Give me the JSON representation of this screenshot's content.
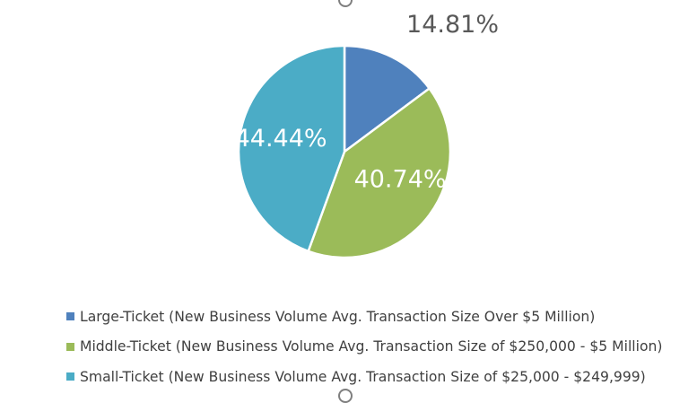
{
  "colors": {
    "large": "#4f81bd",
    "middle": "#9bbb59",
    "small": "#4bacc6",
    "outside_label": "#595959",
    "inside_label": "#ffffff",
    "legend_text": "#404040"
  },
  "chart_data": {
    "type": "pie",
    "title": "",
    "start_angle_deg": 0,
    "direction": "clockwise",
    "legend_position": "bottom",
    "slices": [
      {
        "name": "Large-Ticket (New Business Volume Avg. Transaction Size Over $5 Million)",
        "value": 14.81,
        "label": "14.81%",
        "color_key": "large",
        "label_placement": "outside"
      },
      {
        "name": "Middle-Ticket (New Business Volume Avg. Transaction Size of $250,000 - $5 Million)",
        "value": 40.74,
        "label": "40.74%",
        "color_key": "middle",
        "label_placement": "inside"
      },
      {
        "name": "Small-Ticket (New Business Volume Avg. Transaction Size of $25,000 - $249,999)",
        "value": 44.44,
        "label": "44.44%",
        "color_key": "small",
        "label_placement": "inside"
      }
    ]
  }
}
